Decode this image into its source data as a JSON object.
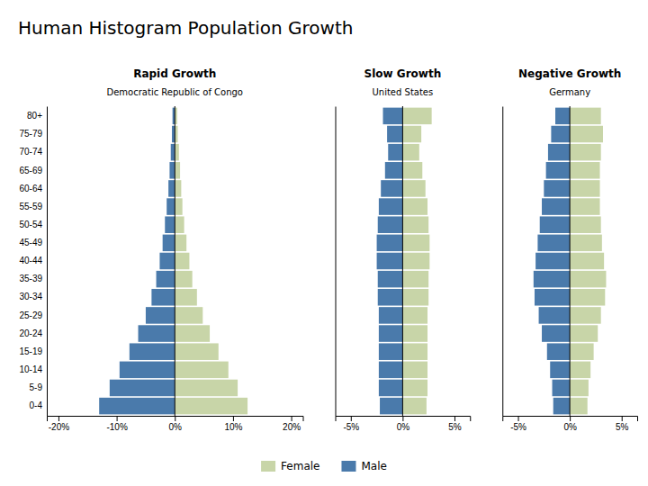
{
  "title": "Human Histogram Population Growth",
  "chart_data": [
    {
      "type": "bar",
      "orientation": "horizontal",
      "title": "Rapid Growth",
      "subtitle": "Democratic Republic of Congo",
      "legend": "bottom",
      "categories": [
        "80+",
        "75-79",
        "70-74",
        "65-69",
        "60-64",
        "55-59",
        "50-54",
        "45-49",
        "40-44",
        "35-39",
        "30-34",
        "25-29",
        "20-24",
        "15-19",
        "10-14",
        "5-9",
        "0-4"
      ],
      "series": [
        {
          "name": "Male",
          "color": "#4a7aab",
          "values": [
            -0.4,
            -0.5,
            -0.7,
            -0.9,
            -1.1,
            -1.4,
            -1.7,
            -2.1,
            -2.6,
            -3.2,
            -4.0,
            -5.0,
            -6.3,
            -7.8,
            -9.5,
            -11.2,
            -13.0
          ]
        },
        {
          "name": "Female",
          "color": "#c8d5a8",
          "values": [
            0.4,
            0.5,
            0.7,
            0.9,
            1.1,
            1.3,
            1.6,
            2.0,
            2.5,
            3.0,
            3.8,
            4.8,
            6.0,
            7.5,
            9.2,
            10.8,
            12.5
          ]
        }
      ],
      "xlim": [
        -22,
        22
      ],
      "xticks": [
        {
          "value": -20,
          "label": "-20%"
        },
        {
          "value": -10,
          "label": "-10%"
        },
        {
          "value": 0,
          "label": "0%"
        },
        {
          "value": 10,
          "label": "10%"
        },
        {
          "value": 20,
          "label": "20%"
        }
      ]
    },
    {
      "type": "bar",
      "orientation": "horizontal",
      "title": "Slow Growth",
      "subtitle": "United States",
      "tick_labels": "x",
      "categories": [
        "80+",
        "75-79",
        "70-74",
        "65-69",
        "60-64",
        "55-59",
        "50-54",
        "45-49",
        "40-44",
        "35-39",
        "30-34",
        "25-29",
        "20-24",
        "15-19",
        "10-14",
        "5-9",
        "0-4"
      ],
      "series": [
        {
          "name": "Male",
          "color": "#4a7aab",
          "values": [
            -1.9,
            -1.5,
            -1.4,
            -1.7,
            -2.1,
            -2.3,
            -2.4,
            -2.5,
            -2.5,
            -2.4,
            -2.4,
            -2.3,
            -2.3,
            -2.3,
            -2.3,
            -2.3,
            -2.2
          ]
        },
        {
          "name": "Female",
          "color": "#c8d5a8",
          "values": [
            2.8,
            1.8,
            1.6,
            1.9,
            2.2,
            2.4,
            2.5,
            2.6,
            2.6,
            2.5,
            2.5,
            2.4,
            2.4,
            2.4,
            2.4,
            2.4,
            2.3
          ]
        }
      ],
      "xlim": [
        -6.5,
        6.5
      ],
      "xticks": [
        {
          "value": -5,
          "label": "-5%"
        },
        {
          "value": 0,
          "label": "0%"
        },
        {
          "value": 5,
          "label": "5%"
        }
      ]
    },
    {
      "type": "bar",
      "orientation": "horizontal",
      "title": "Negative Growth",
      "subtitle": "Germany",
      "tick_labels": "x",
      "categories": [
        "80+",
        "75-79",
        "70-74",
        "65-69",
        "60-64",
        "55-59",
        "50-54",
        "45-49",
        "40-44",
        "35-39",
        "30-34",
        "25-29",
        "20-24",
        "15-19",
        "10-14",
        "5-9",
        "0-4"
      ],
      "series": [
        {
          "name": "Male",
          "color": "#4a7aab",
          "values": [
            -1.4,
            -1.8,
            -2.1,
            -2.3,
            -2.5,
            -2.7,
            -2.9,
            -3.1,
            -3.3,
            -3.5,
            -3.4,
            -3.0,
            -2.7,
            -2.2,
            -1.9,
            -1.7,
            -1.6
          ]
        },
        {
          "name": "Female",
          "color": "#c8d5a8",
          "values": [
            3.0,
            3.2,
            3.0,
            2.9,
            2.9,
            2.9,
            3.0,
            3.1,
            3.3,
            3.5,
            3.4,
            3.0,
            2.7,
            2.3,
            2.0,
            1.8,
            1.7
          ]
        }
      ],
      "xlim": [
        -6.5,
        6.5
      ],
      "xticks": [
        {
          "value": -5,
          "label": "-5%"
        },
        {
          "value": 0,
          "label": "0%"
        },
        {
          "value": 5,
          "label": "5%"
        }
      ]
    }
  ]
}
